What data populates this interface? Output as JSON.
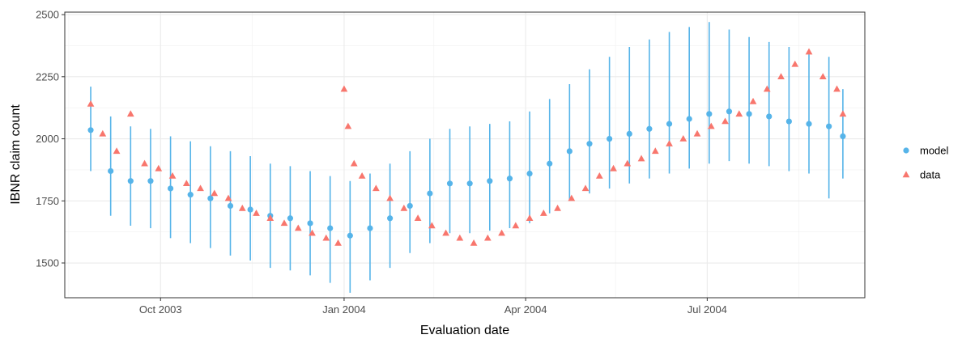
{
  "chart_data": {
    "type": "scatter",
    "title": "",
    "xlabel": "Evaluation date",
    "ylabel": "IBNR claim count",
    "x_range": [
      "2003-08-14",
      "2004-09-18"
    ],
    "ylim": [
      1360,
      2510
    ],
    "x_ticks": [
      {
        "date": "2003-10-01",
        "label": "Oct 2003"
      },
      {
        "date": "2004-01-01",
        "label": "Jan 2004"
      },
      {
        "date": "2004-04-01",
        "label": "Apr 2004"
      },
      {
        "date": "2004-07-01",
        "label": "Jul 2004"
      }
    ],
    "x_minor_ticks": [
      "2003-08-16",
      "2003-11-16",
      "2004-02-15",
      "2004-05-16",
      "2004-08-16"
    ],
    "y_ticks": [
      1500,
      1750,
      2000,
      2250,
      2500
    ],
    "y_tick_labels": [
      "1500",
      "1750",
      "2000",
      "2250",
      "2500"
    ],
    "grid": true,
    "legend_position": "right",
    "series": [
      {
        "name": "model",
        "marker": "circle",
        "color": "#56B4E9",
        "x": [
          "2003-08-27",
          "2003-09-06",
          "2003-09-16",
          "2003-09-26",
          "2003-10-06",
          "2003-10-16",
          "2003-10-26",
          "2003-11-05",
          "2003-11-15",
          "2003-11-25",
          "2003-12-05",
          "2003-12-15",
          "2003-12-25",
          "2004-01-04",
          "2004-01-14",
          "2004-01-24",
          "2004-02-03",
          "2004-02-13",
          "2004-02-23",
          "2004-03-04",
          "2004-03-14",
          "2004-03-24",
          "2004-04-03",
          "2004-04-13",
          "2004-04-23",
          "2004-05-03",
          "2004-05-13",
          "2004-05-23",
          "2004-06-02",
          "2004-06-12",
          "2004-06-22",
          "2004-07-02",
          "2004-07-12",
          "2004-07-22",
          "2004-08-01",
          "2004-08-11",
          "2004-08-21",
          "2004-08-31",
          "2004-09-07"
        ],
        "y": [
          2035,
          1870,
          1830,
          1830,
          1800,
          1775,
          1760,
          1730,
          1715,
          1690,
          1680,
          1660,
          1640,
          1610,
          1640,
          1680,
          1730,
          1780,
          1820,
          1820,
          1830,
          1840,
          1860,
          1900,
          1950,
          1980,
          2000,
          2020,
          2040,
          2060,
          2080,
          2100,
          2110,
          2100,
          2090,
          2070,
          2060,
          2050,
          2010
        ],
        "lower": [
          1870,
          1690,
          1650,
          1640,
          1600,
          1580,
          1560,
          1530,
          1510,
          1480,
          1470,
          1450,
          1420,
          1380,
          1430,
          1480,
          1540,
          1580,
          1620,
          1620,
          1630,
          1640,
          1660,
          1700,
          1750,
          1780,
          1800,
          1820,
          1840,
          1860,
          1880,
          1900,
          1910,
          1900,
          1890,
          1870,
          1860,
          1760,
          1840
        ],
        "upper": [
          2210,
          2090,
          2050,
          2040,
          2010,
          1990,
          1970,
          1950,
          1930,
          1900,
          1890,
          1870,
          1850,
          1830,
          1860,
          1900,
          1950,
          2000,
          2040,
          2050,
          2060,
          2070,
          2110,
          2160,
          2220,
          2280,
          2330,
          2370,
          2400,
          2430,
          2450,
          2470,
          2440,
          2410,
          2390,
          2370,
          2340,
          2330,
          2200
        ]
      },
      {
        "name": "data",
        "marker": "triangle",
        "color": "#F8766D",
        "x": [
          "2003-08-27",
          "2003-09-02",
          "2003-09-09",
          "2003-09-16",
          "2003-09-23",
          "2003-09-30",
          "2003-10-07",
          "2003-10-14",
          "2003-10-21",
          "2003-10-28",
          "2003-11-04",
          "2003-11-11",
          "2003-11-18",
          "2003-11-25",
          "2003-12-02",
          "2003-12-09",
          "2003-12-16",
          "2003-12-23",
          "2003-12-29",
          "2004-01-01",
          "2004-01-03",
          "2004-01-06",
          "2004-01-10",
          "2004-01-17",
          "2004-01-24",
          "2004-01-31",
          "2004-02-07",
          "2004-02-14",
          "2004-02-21",
          "2004-02-28",
          "2004-03-06",
          "2004-03-13",
          "2004-03-20",
          "2004-03-27",
          "2004-04-03",
          "2004-04-10",
          "2004-04-17",
          "2004-04-24",
          "2004-05-01",
          "2004-05-08",
          "2004-05-15",
          "2004-05-22",
          "2004-05-29",
          "2004-06-05",
          "2004-06-12",
          "2004-06-19",
          "2004-06-26",
          "2004-07-03",
          "2004-07-10",
          "2004-07-17",
          "2004-07-24",
          "2004-07-31",
          "2004-08-07",
          "2004-08-14",
          "2004-08-21",
          "2004-08-28",
          "2004-09-04",
          "2004-09-07"
        ],
        "y": [
          2140,
          2020,
          1950,
          2100,
          1900,
          1880,
          1850,
          1820,
          1800,
          1780,
          1760,
          1720,
          1700,
          1680,
          1660,
          1640,
          1620,
          1600,
          1580,
          2200,
          2050,
          1900,
          1850,
          1800,
          1760,
          1720,
          1680,
          1650,
          1620,
          1600,
          1580,
          1600,
          1620,
          1650,
          1680,
          1700,
          1720,
          1760,
          1800,
          1850,
          1880,
          1900,
          1920,
          1950,
          1980,
          2000,
          2020,
          2050,
          2070,
          2100,
          2150,
          2200,
          2250,
          2300,
          2350,
          2250,
          2200,
          2100
        ]
      }
    ]
  }
}
